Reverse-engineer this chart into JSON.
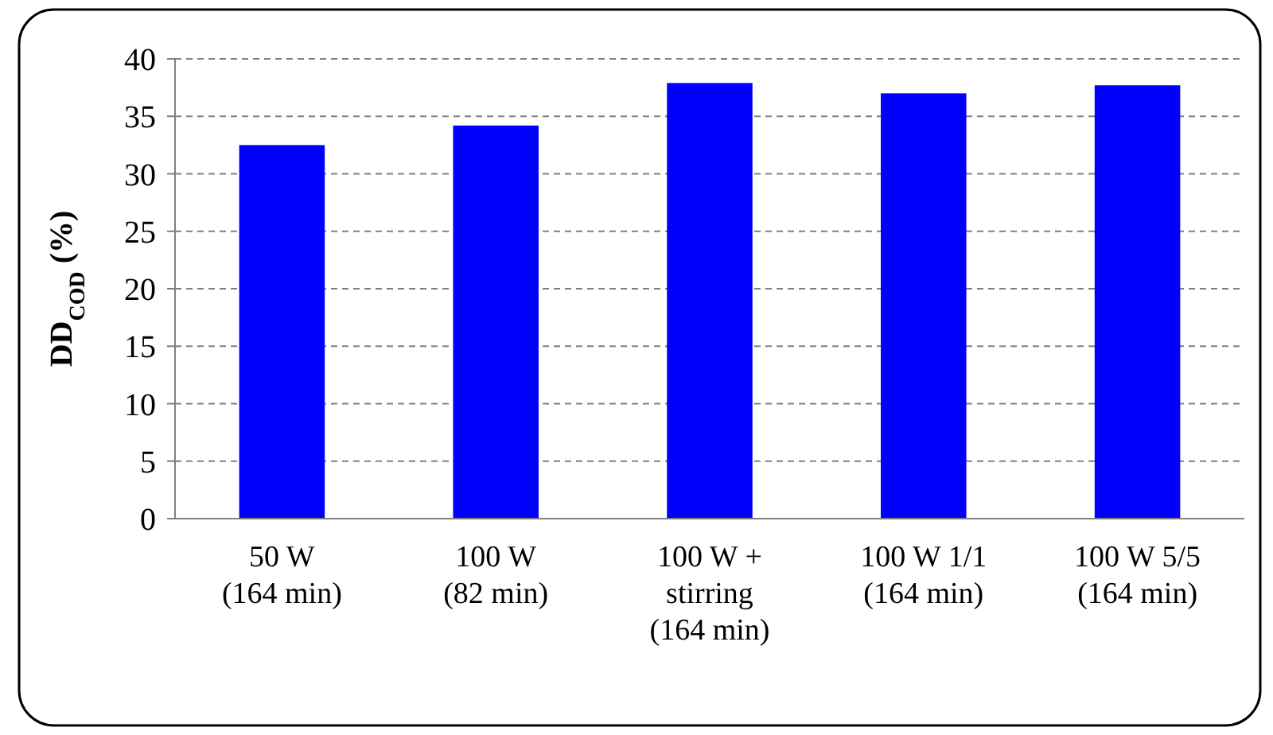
{
  "chart_data": {
    "type": "bar",
    "ylabel": "DD$_{COD}$ (%)",
    "categories": [
      "50 W\n(164 min)",
      "100 W\n(82 min)",
      "100 W +\nstirring\n(164 min)",
      "100 W 1/1\n(164 min)",
      "100 W 5/5\n(164 min)"
    ],
    "values": [
      32.5,
      34.2,
      37.9,
      37.0,
      37.7
    ],
    "color": "#0000ff",
    "ylim": [
      0,
      40
    ],
    "yticks": [
      0,
      5,
      10,
      15,
      20,
      25,
      30,
      35,
      40
    ],
    "grid": "y"
  }
}
